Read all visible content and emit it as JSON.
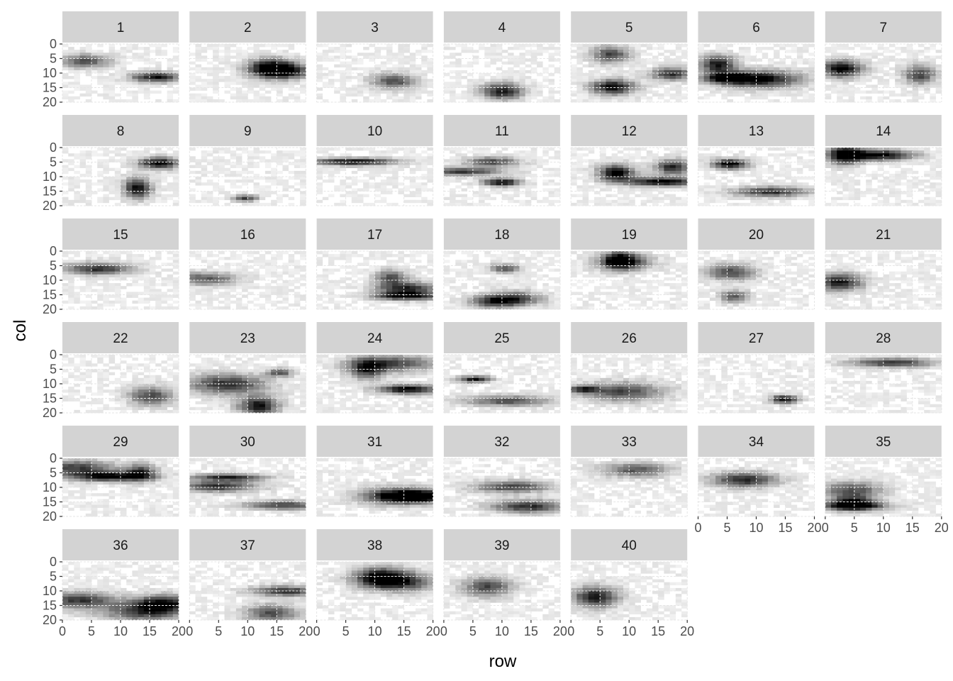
{
  "chart_data": {
    "type": "heatmap",
    "description_style": "faceted raster (one grayscale image per panel)",
    "panels": [
      "1",
      "2",
      "3",
      "4",
      "5",
      "6",
      "7",
      "8",
      "9",
      "10",
      "11",
      "12",
      "13",
      "14",
      "15",
      "16",
      "17",
      "18",
      "19",
      "20",
      "21",
      "22",
      "23",
      "24",
      "25",
      "26",
      "27",
      "28",
      "29",
      "30",
      "31",
      "32",
      "33",
      "34",
      "35",
      "36",
      "37",
      "38",
      "39",
      "40"
    ],
    "ncol": 7,
    "xlabel": "row",
    "ylabel": "col",
    "xlim": [
      0,
      20
    ],
    "ylim": [
      0,
      20
    ],
    "y_reversed": true,
    "x_ticks": [
      "0",
      "5",
      "10",
      "15",
      "20"
    ],
    "y_ticks": [
      "0",
      "5",
      "10",
      "15",
      "20"
    ],
    "grid": true,
    "colors": {
      "strip_bg": "#d3d3d3",
      "panel_bg": "#ffffff",
      "grid": "#e5e5e5",
      "fill_low": "#ffffff",
      "fill_high": "#000000"
    }
  }
}
